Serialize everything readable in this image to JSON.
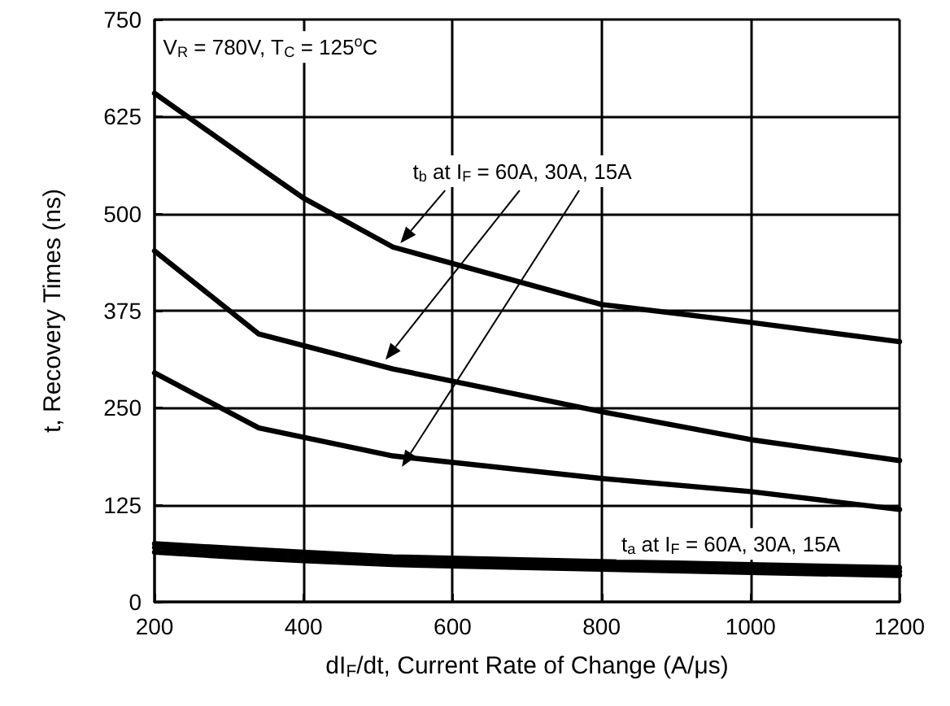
{
  "chart_data": {
    "type": "line",
    "xlabel": "dI$_{F}$/dt, Current Rate of Change (A/μs)",
    "ylabel": "t, Recovery Times (ns)",
    "annotations": [
      "V$_{R}$ = 780V, T$_{C}$ = 125$^{o}$C",
      {
        "text": "t$_{b}$ at I$_{F}$ = 60A, 30A, 15A",
        "x": 530,
        "y": 462
      },
      "t$_{a}$ at I$_{F}$ = 60A, 30A, 15A"
    ],
    "x": [
      200,
      340,
      400,
      520,
      800,
      1000,
      1200
    ],
    "series": [
      {
        "color": "#000000",
        "values": [
          655,
          560,
          520,
          457,
          383,
          360,
          335
        ]
      },
      {
        "color": "#000000",
        "values": [
          452,
          345,
          330,
          300,
          245,
          209,
          182
        ]
      },
      {
        "color": "#000000",
        "values": [
          295,
          224,
          212,
          188,
          159,
          142,
          119
        ]
      },
      {
        "color": "#000000",
        "values": [
          75,
          67,
          64,
          58,
          52,
          48,
          44
        ]
      },
      {
        "color": "#000000",
        "values": [
          70,
          62,
          59,
          53,
          47,
          43,
          39
        ]
      },
      {
        "color": "#000000",
        "values": [
          64,
          56,
          53,
          48,
          42,
          38,
          34
        ]
      }
    ],
    "xlim": [
      200,
      1200
    ],
    "xticks": [
      200,
      400,
      600,
      800,
      1000,
      1200
    ],
    "ylim": [
      0,
      750
    ],
    "yticks": [
      0,
      125,
      250,
      375,
      500,
      625,
      750
    ],
    "grid": true,
    "marker": "none",
    "line_style": "solid"
  }
}
